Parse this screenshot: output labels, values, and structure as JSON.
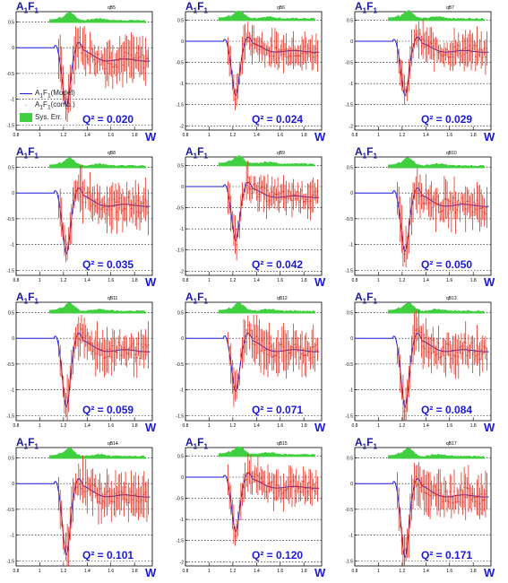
{
  "y_title": "A1F1",
  "x_title": "W",
  "legend": {
    "model": "A1F1(Model)",
    "data": "A1F1(comb.)",
    "sys": "Sys. Err."
  },
  "colors": {
    "model": "#1a1ad8",
    "data": "#e0301e",
    "sys": "#3fcf3f",
    "label": "#1a1ad8"
  },
  "chart_data": [
    {
      "type": "line",
      "panel": "qB5",
      "q2": "Q² = 0.020",
      "ylim": [
        -1.6,
        0.7
      ],
      "yticks": [
        -1.5,
        -1,
        -0.5,
        0,
        0.5
      ],
      "dip": -1.05,
      "xlim": [
        1.0,
        1.95
      ]
    },
    {
      "type": "line",
      "panel": "qB6",
      "q2": "Q² = 0.024",
      "ylim": [
        -2.1,
        0.7
      ],
      "yticks": [
        -2,
        -1.5,
        -1,
        -0.5,
        0,
        0.5
      ],
      "dip": -1.2,
      "xlim": [
        1.0,
        1.95
      ]
    },
    {
      "type": "line",
      "panel": "qB7",
      "q2": "Q² = 0.029",
      "ylim": [
        -2.1,
        0.7
      ],
      "yticks": [
        -2,
        -1.5,
        -1,
        -0.5,
        0,
        0.5
      ],
      "dip": -1.2,
      "xlim": [
        1.0,
        1.95
      ]
    },
    {
      "type": "line",
      "panel": "qB8",
      "q2": "Q² = 0.035",
      "ylim": [
        -1.6,
        0.7
      ],
      "yticks": [
        -1.5,
        -1,
        -0.5,
        0,
        0.5
      ],
      "dip": -1.1,
      "xlim": [
        1.0,
        1.95
      ]
    },
    {
      "type": "line",
      "panel": "qB9",
      "q2": "Q² = 0.042",
      "ylim": [
        -2.1,
        0.7
      ],
      "yticks": [
        -2,
        -1.5,
        -1,
        -0.5,
        0,
        0.5
      ],
      "dip": -1.2,
      "xlim": [
        1.0,
        1.95
      ]
    },
    {
      "type": "line",
      "panel": "qB10",
      "q2": "Q² = 0.050",
      "ylim": [
        -1.6,
        0.7
      ],
      "yticks": [
        -1.5,
        -1,
        -0.5,
        0,
        0.5
      ],
      "dip": -1.05,
      "xlim": [
        1.0,
        1.95
      ]
    },
    {
      "type": "line",
      "panel": "qB11",
      "q2": "Q² = 0.059",
      "ylim": [
        -1.6,
        0.7
      ],
      "yticks": [
        -1.5,
        -1,
        -0.5,
        0,
        0.5
      ],
      "dip": -1.25,
      "xlim": [
        1.0,
        1.95
      ]
    },
    {
      "type": "line",
      "panel": "qB12",
      "q2": "Q² = 0.071",
      "ylim": [
        -1.6,
        0.7
      ],
      "yticks": [
        -1.5,
        -1,
        -0.5,
        0,
        0.5
      ],
      "dip": -0.95,
      "xlim": [
        1.0,
        1.95
      ]
    },
    {
      "type": "line",
      "panel": "qB13",
      "q2": "Q² = 0.084",
      "ylim": [
        -1.6,
        0.7
      ],
      "yticks": [
        -1.5,
        -1,
        -0.5,
        0,
        0.5
      ],
      "dip": -1.25,
      "xlim": [
        1.0,
        1.95
      ]
    },
    {
      "type": "line",
      "panel": "qB14",
      "q2": "Q² = 0.101",
      "ylim": [
        -1.6,
        0.7
      ],
      "yticks": [
        -1.5,
        -1,
        -0.5,
        0,
        0.5
      ],
      "dip": -1.3,
      "xlim": [
        1.0,
        1.95
      ]
    },
    {
      "type": "line",
      "panel": "qB15",
      "q2": "Q² = 0.120",
      "ylim": [
        -2.1,
        0.7
      ],
      "yticks": [
        -2,
        -1.5,
        -1,
        -0.5,
        0,
        0.5
      ],
      "dip": -1.2,
      "xlim": [
        1.0,
        1.95
      ]
    },
    {
      "type": "line",
      "panel": "qB17",
      "q2": "Q² = 0.171",
      "ylim": [
        -1.6,
        0.7
      ],
      "yticks": [
        -1.5,
        -1,
        -0.5,
        0,
        0.5
      ],
      "dip": -1.35,
      "xlim": [
        1.0,
        1.95
      ]
    }
  ],
  "xticks": [
    "1",
    "1.2",
    "1.4",
    "1.6",
    "1.8"
  ],
  "xtick_first": "0.8"
}
